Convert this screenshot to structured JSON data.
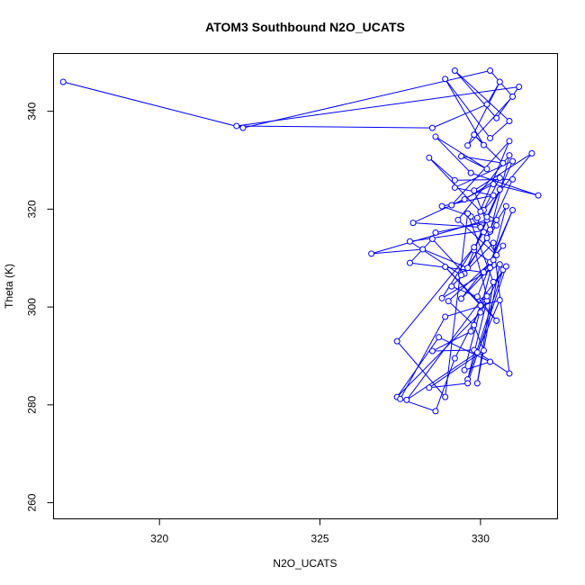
{
  "chart_data": {
    "type": "line",
    "title": "ATOM3 Southbound N2O_UCATS",
    "xlabel": "N2O_UCATS",
    "ylabel": "Theta (K)",
    "xlim": [
      316.7,
      332.4
    ],
    "ylim": [
      256.7,
      351.8
    ],
    "xticks": [
      320,
      325,
      330
    ],
    "yticks": [
      260,
      280,
      300,
      320,
      340
    ],
    "grid": false,
    "legend": "none",
    "markers": "open-circle",
    "series_color": "#0000ff",
    "x": [
      317.0,
      322.6,
      330.3,
      331.0,
      329.6,
      330.6,
      330.2,
      328.5,
      322.4,
      331.2,
      330.5,
      329.2,
      330.9,
      330.3,
      328.9,
      330.1,
      329.8,
      330.7,
      329.4,
      330.2,
      328.6,
      329.7,
      331.8,
      330.4,
      329.1,
      330.9,
      329.9,
      330.0,
      327.9,
      329.5,
      330.6,
      330.1,
      331.6,
      329.8,
      330.3,
      330.9,
      329.3,
      330.5,
      330.2,
      329.7,
      328.8,
      330.4,
      329.2,
      331.0,
      330.2,
      326.6,
      328.2,
      329.6,
      330.8,
      330.3,
      329.4,
      330.7,
      330.1,
      327.8,
      328.5,
      329.5,
      330.6,
      330.2,
      329.8,
      330.3,
      331.0,
      329.9,
      330.5,
      328.9,
      330.0,
      329.7,
      328.5,
      329.8,
      330.9,
      330.4,
      329.1,
      330.2,
      329.6,
      330.7,
      330.0,
      327.4,
      328.7,
      330.3,
      329.5,
      330.4,
      329.0,
      329.8,
      330.1,
      328.4,
      329.6,
      330.8,
      327.7,
      329.9,
      330.6,
      328.9,
      327.5,
      328.6,
      329.2,
      330.2,
      329.8,
      327.4,
      328.9,
      329.6,
      330.4,
      329.9,
      330.6,
      328.8,
      330.1,
      330.5,
      329.4,
      327.8,
      330.3,
      331.0,
      329.2,
      328.4,
      330.0,
      330.5,
      328.6
    ],
    "y": [
      346.0,
      336.6,
      348.3,
      343.0,
      333.0,
      346.0,
      341.4,
      336.6,
      337.0,
      345.0,
      338.6,
      348.3,
      338.0,
      334.5,
      346.6,
      333.1,
      335.2,
      329.4,
      330.8,
      328.2,
      334.8,
      327.4,
      322.8,
      325.1,
      320.8,
      333.9,
      318.2,
      316.3,
      317.2,
      322.0,
      326.4,
      319.8,
      331.4,
      323.8,
      315.4,
      331.0,
      317.8,
      310.6,
      314.1,
      318.5,
      320.6,
      322.8,
      324.4,
      329.8,
      317.8,
      310.9,
      311.8,
      308.0,
      320.6,
      308.0,
      301.7,
      312.5,
      307.1,
      309.0,
      313.9,
      306.8,
      324.0,
      318.4,
      311.6,
      309.2,
      319.8,
      302.1,
      297.2,
      308.2,
      300.3,
      295.0,
      291.0,
      291.2,
      286.4,
      313.1,
      304.2,
      301.3,
      285.2,
      307.6,
      298.9,
      281.6,
      293.8,
      288.8,
      287.1,
      309.6,
      301.2,
      296.3,
      291.1,
      283.5,
      284.4,
      308.3,
      281.0,
      290.7,
      301.4,
      298.0,
      281.2,
      278.7,
      289.5,
      302.2,
      312.2,
      293.0,
      281.6,
      319.1,
      305.1,
      284.4,
      308.7,
      301.8,
      315.3,
      316.7,
      306.5,
      313.4,
      315.8,
      326.1,
      325.9,
      330.5,
      319.5,
      317.8,
      315.2
    ]
  }
}
